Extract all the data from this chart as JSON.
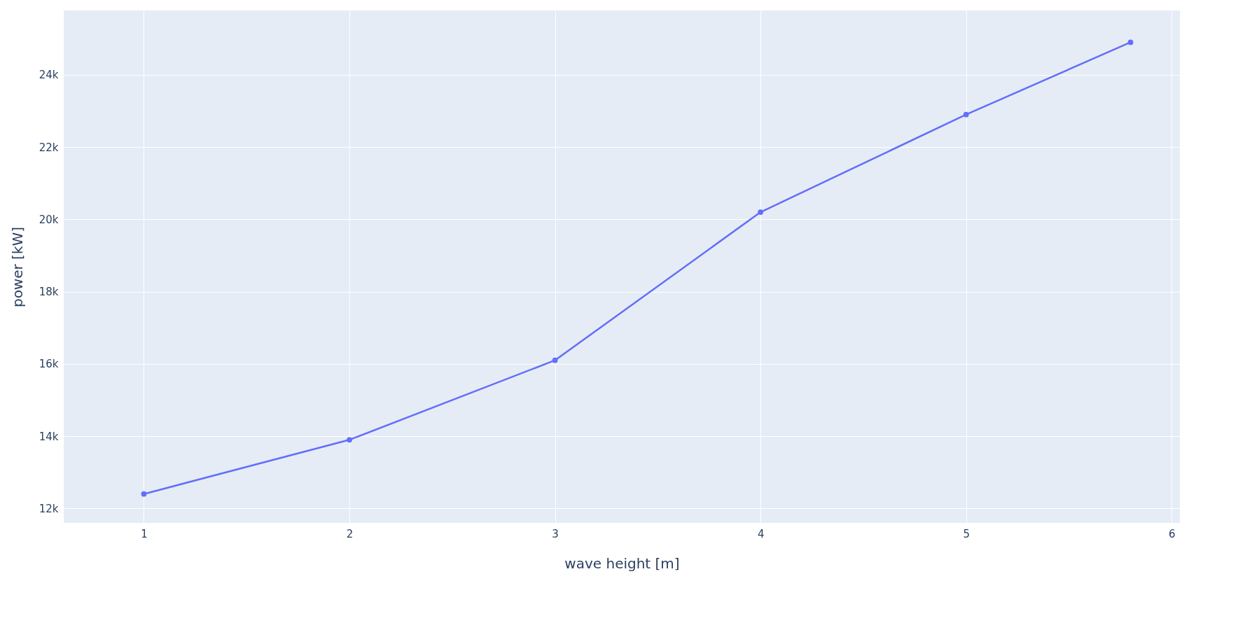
{
  "chart_data": {
    "type": "line",
    "xlabel": "wave height [m]",
    "ylabel": "power [kW]",
    "x": [
      1,
      2,
      3,
      4,
      5,
      5.8
    ],
    "series": [
      {
        "color": "#636efa",
        "values": [
          12400,
          13900,
          16100,
          20200,
          22900,
          24900
        ]
      }
    ],
    "xlim": [
      0.61,
      6.04
    ],
    "xticks": [
      1,
      2,
      3,
      4,
      5,
      6
    ],
    "ylim": [
      11600,
      25780
    ],
    "yticks": [
      {
        "value": 12000,
        "label": "12k"
      },
      {
        "value": 14000,
        "label": "14k"
      },
      {
        "value": 16000,
        "label": "16k"
      },
      {
        "value": 18000,
        "label": "18k"
      },
      {
        "value": 20000,
        "label": "20k"
      },
      {
        "value": 22000,
        "label": "22k"
      },
      {
        "value": 24000,
        "label": "24k"
      }
    ],
    "grid": true,
    "marker": "circle",
    "line_style": "solid",
    "legend": false
  }
}
